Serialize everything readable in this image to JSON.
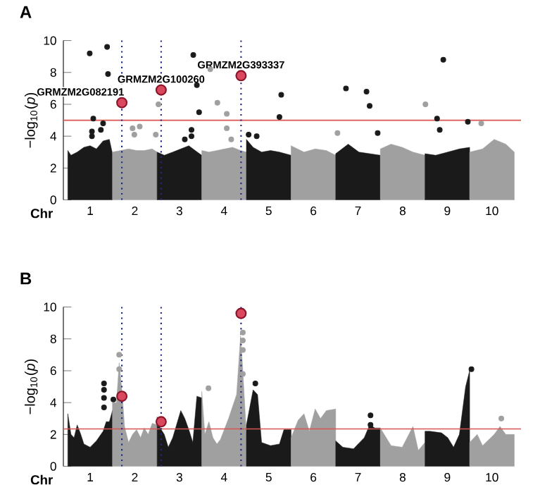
{
  "chart_data": [
    {
      "type": "scatter",
      "title": "A",
      "xlabel": "Chr",
      "ylabel": "−log$_{10}$(*p*)",
      "xlim": [
        0.4,
        10.65
      ],
      "ylim": [
        0,
        10
      ],
      "yticks": [
        0,
        2,
        4,
        6,
        8,
        10
      ],
      "xticks": [
        1,
        2,
        3,
        4,
        5,
        6,
        7,
        8,
        9,
        10
      ],
      "series": [
        {
          "type": "area",
          "color": "#1a1a1a",
          "x": [
            0.5,
            0.57,
            0.71,
            0.86,
            1.0,
            1.14,
            1.29,
            1.43,
            1.5
          ],
          "values": [
            3.1,
            2.8,
            3.0,
            3.3,
            3.4,
            3.2,
            3.7,
            3.8,
            2.9
          ]
        },
        {
          "type": "area",
          "color": "#a0a0a0",
          "x": [
            1.5,
            1.68,
            1.86,
            2.04,
            2.21,
            2.39,
            2.5
          ],
          "values": [
            3.0,
            3.1,
            3.2,
            3.1,
            3.1,
            3.2,
            3.0
          ]
        },
        {
          "type": "area",
          "color": "#1a1a1a",
          "x": [
            2.5,
            2.66,
            2.85,
            3.03,
            3.21,
            3.4,
            3.5
          ],
          "values": [
            3.0,
            2.8,
            3.0,
            3.2,
            3.4,
            3.0,
            2.8
          ]
        },
        {
          "type": "area",
          "color": "#a0a0a0",
          "x": [
            3.5,
            3.66,
            3.84,
            4.01,
            4.19,
            4.37,
            4.5
          ],
          "values": [
            3.1,
            3.0,
            3.1,
            3.2,
            3.3,
            3.1,
            3.0
          ]
        },
        {
          "type": "area",
          "color": "#1a1a1a",
          "x": [
            4.5,
            4.65,
            4.84,
            5.04,
            5.24,
            5.5
          ],
          "values": [
            3.8,
            3.3,
            3.0,
            3.1,
            3.0,
            2.8
          ]
        },
        {
          "type": "area",
          "color": "#a0a0a0",
          "x": [
            5.5,
            5.79,
            6.04,
            6.29,
            6.5
          ],
          "values": [
            3.4,
            3.0,
            3.2,
            3.1,
            2.8
          ]
        },
        {
          "type": "area",
          "color": "#1a1a1a",
          "x": [
            6.5,
            6.78,
            7.02,
            7.26,
            7.5
          ],
          "values": [
            2.9,
            3.5,
            3.0,
            2.9,
            2.8
          ]
        },
        {
          "type": "area",
          "color": "#a0a0a0",
          "x": [
            7.5,
            7.74,
            7.99,
            8.23,
            8.5
          ],
          "values": [
            3.2,
            3.5,
            3.3,
            3.0,
            2.8
          ]
        },
        {
          "type": "area",
          "color": "#1a1a1a",
          "x": [
            8.5,
            8.74,
            9.01,
            9.27,
            9.5
          ],
          "values": [
            2.9,
            2.8,
            3.0,
            3.2,
            3.3
          ]
        },
        {
          "type": "area",
          "color": "#a0a0a0",
          "x": [
            9.5,
            9.79,
            10.05,
            10.31,
            10.5
          ],
          "values": [
            3.0,
            3.2,
            3.8,
            3.5,
            3.0
          ]
        },
        {
          "color": "#1a1a1a",
          "marker": "circle",
          "x": [
            0.99,
            1.38,
            1.4,
            1.07,
            1.29,
            1.24,
            1.04,
            1.04,
            3.31,
            3.39,
            3.44,
            3.27,
            3.27,
            3.12,
            5.28,
            5.24,
            4.55,
            4.73,
            6.73,
            7.19,
            7.26,
            7.44,
            8.91,
            8.77,
            8.83,
            9.46
          ],
          "values": [
            9.2,
            9.6,
            7.9,
            5.1,
            4.8,
            4.4,
            4.3,
            4.0,
            9.1,
            7.2,
            5.5,
            4.4,
            4.0,
            3.8,
            6.6,
            5.2,
            4.1,
            4.0,
            7.0,
            6.8,
            5.9,
            4.2,
            8.8,
            5.1,
            4.4,
            4.9
          ]
        },
        {
          "color": "#a0a0a0",
          "marker": "circle",
          "x": [
            3.69,
            3.85,
            2.53,
            4.06,
            4.06,
            4.16,
            8.51,
            9.76,
            2.11,
            1.95,
            1.99,
            2.47,
            6.54
          ],
          "values": [
            8.2,
            6.1,
            6.0,
            5.4,
            4.5,
            3.8,
            6.0,
            4.8,
            4.6,
            4.5,
            4.1,
            4.1,
            4.2
          ]
        },
        {
          "color": "#d9485f",
          "marker": "circle",
          "x": [
            1.71,
            2.59,
            4.38
          ],
          "values": [
            6.1,
            6.9,
            7.8
          ]
        }
      ],
      "ref_lines": [
        {
          "axis": "y",
          "value": 5,
          "color": "#d9534f",
          "line_style": "solid"
        },
        {
          "axis": "x",
          "value": 1.71,
          "color": "#1f2a8a",
          "line_style": "dotted"
        },
        {
          "axis": "x",
          "value": 2.59,
          "color": "#1f2a8a",
          "line_style": "dotted"
        },
        {
          "axis": "x",
          "value": 4.38,
          "color": "#1f2a8a",
          "line_style": "dotted"
        }
      ],
      "annotations": [
        {
          "text": "GRMZM2G082191",
          "x": 1.71,
          "y": 6.1
        },
        {
          "text": "GRMZM2G100260",
          "x": 2.59,
          "y": 6.9
        },
        {
          "text": "GRMZM2G393337",
          "x": 4.38,
          "y": 7.8
        }
      ]
    },
    {
      "type": "scatter",
      "title": "B",
      "xlabel": "Chr",
      "ylabel": "−log$_{10}$(*p*)",
      "xlim": [
        0.4,
        10.65
      ],
      "ylim": [
        0,
        10
      ],
      "yticks": [
        0,
        2,
        4,
        6,
        8,
        10
      ],
      "xticks": [
        1,
        2,
        3,
        4,
        5,
        6,
        7,
        8,
        9,
        10
      ],
      "series": [
        {
          "type": "area",
          "color": "#1a1a1a",
          "x": [
            0.5,
            0.57,
            0.64,
            0.71,
            0.79,
            0.86,
            1.0,
            1.14,
            1.29,
            1.36,
            1.43,
            1.5
          ],
          "values": [
            3.3,
            2.0,
            1.8,
            2.6,
            2.0,
            1.4,
            1.2,
            1.6,
            2.2,
            2.8,
            2.8,
            3.5
          ]
        },
        {
          "type": "area",
          "color": "#a0a0a0",
          "x": [
            1.5,
            1.59,
            1.65,
            1.72,
            1.77,
            1.86,
            1.95,
            2.04,
            2.13,
            2.21,
            2.3,
            2.39,
            2.5
          ],
          "values": [
            4.0,
            4.0,
            6.5,
            4.5,
            2.5,
            1.5,
            2.0,
            2.3,
            1.8,
            2.4,
            2.0,
            2.7,
            2.6
          ]
        },
        {
          "type": "area",
          "color": "#1a1a1a",
          "x": [
            2.5,
            2.57,
            2.66,
            2.75,
            2.85,
            3.03,
            3.12,
            3.21,
            3.3,
            3.39,
            3.5
          ],
          "values": [
            3.1,
            2.4,
            2.0,
            1.2,
            1.8,
            3.5,
            3.0,
            2.3,
            1.5,
            4.4,
            4.3
          ]
        },
        {
          "type": "area",
          "color": "#a0a0a0",
          "x": [
            3.5,
            3.57,
            3.66,
            3.75,
            3.84,
            3.92,
            4.1,
            4.28,
            4.37,
            4.42,
            4.5
          ],
          "values": [
            4.7,
            2.0,
            2.8,
            1.8,
            1.4,
            1.7,
            3.0,
            4.5,
            8.2,
            6.0,
            2.0
          ]
        },
        {
          "type": "area",
          "color": "#1a1a1a",
          "x": [
            4.5,
            4.65,
            4.75,
            4.84,
            5.04,
            5.24,
            5.34,
            5.5
          ],
          "values": [
            2.6,
            4.8,
            4.5,
            1.5,
            1.3,
            1.4,
            2.3,
            2.3
          ]
        },
        {
          "type": "area",
          "color": "#a0a0a0",
          "x": [
            5.5,
            5.66,
            5.79,
            5.91,
            6.04,
            6.16,
            6.29,
            6.5
          ],
          "values": [
            1.8,
            2.9,
            3.3,
            2.2,
            3.6,
            3.0,
            3.5,
            3.6
          ]
        },
        {
          "type": "area",
          "color": "#1a1a1a",
          "x": [
            6.5,
            6.66,
            6.9,
            7.14,
            7.26,
            7.38,
            7.5
          ],
          "values": [
            1.6,
            1.2,
            1.1,
            1.8,
            2.6,
            2.4,
            2.4
          ]
        },
        {
          "type": "area",
          "color": "#a0a0a0",
          "x": [
            7.5,
            7.74,
            7.99,
            8.23,
            8.35,
            8.5
          ],
          "values": [
            2.4,
            1.3,
            1.2,
            2.5,
            1.0,
            1.5
          ]
        },
        {
          "type": "area",
          "color": "#1a1a1a",
          "x": [
            8.5,
            8.61,
            8.87,
            9.01,
            9.14,
            9.27,
            9.41,
            9.5
          ],
          "values": [
            2.2,
            2.2,
            2.1,
            1.8,
            1.2,
            2.0,
            5.0,
            6.0
          ]
        },
        {
          "type": "area",
          "color": "#a0a0a0",
          "x": [
            9.5,
            9.67,
            9.79,
            10.05,
            10.18,
            10.31,
            10.5
          ],
          "values": [
            1.5,
            2.0,
            1.3,
            2.0,
            2.5,
            2.0,
            2.0
          ]
        },
        {
          "color": "#1a1a1a",
          "marker": "circle",
          "x": [
            1.31,
            1.31,
            1.31,
            1.31,
            1.52,
            4.7,
            7.28,
            7.28,
            9.54
          ],
          "values": [
            5.2,
            4.8,
            4.3,
            3.7,
            4.2,
            5.2,
            3.2,
            2.6,
            6.1
          ]
        },
        {
          "color": "#a0a0a0",
          "marker": "circle",
          "x": [
            1.65,
            1.65,
            3.65,
            4.42,
            4.42,
            4.42,
            4.42,
            10.21
          ],
          "values": [
            7.0,
            6.1,
            4.9,
            8.4,
            7.9,
            7.3,
            5.8,
            3.0
          ]
        },
        {
          "color": "#d9485f",
          "marker": "circle",
          "x": [
            1.71,
            2.59,
            4.38
          ],
          "values": [
            4.4,
            2.8,
            9.6
          ]
        }
      ],
      "ref_lines": [
        {
          "axis": "y",
          "value": 2.35,
          "color": "#d9534f",
          "line_style": "solid"
        },
        {
          "axis": "x",
          "value": 1.71,
          "color": "#1f2a8a",
          "line_style": "dotted"
        },
        {
          "axis": "x",
          "value": 2.59,
          "color": "#1f2a8a",
          "line_style": "dotted"
        },
        {
          "axis": "x",
          "value": 4.38,
          "color": "#1f2a8a",
          "line_style": "dotted"
        }
      ]
    }
  ]
}
